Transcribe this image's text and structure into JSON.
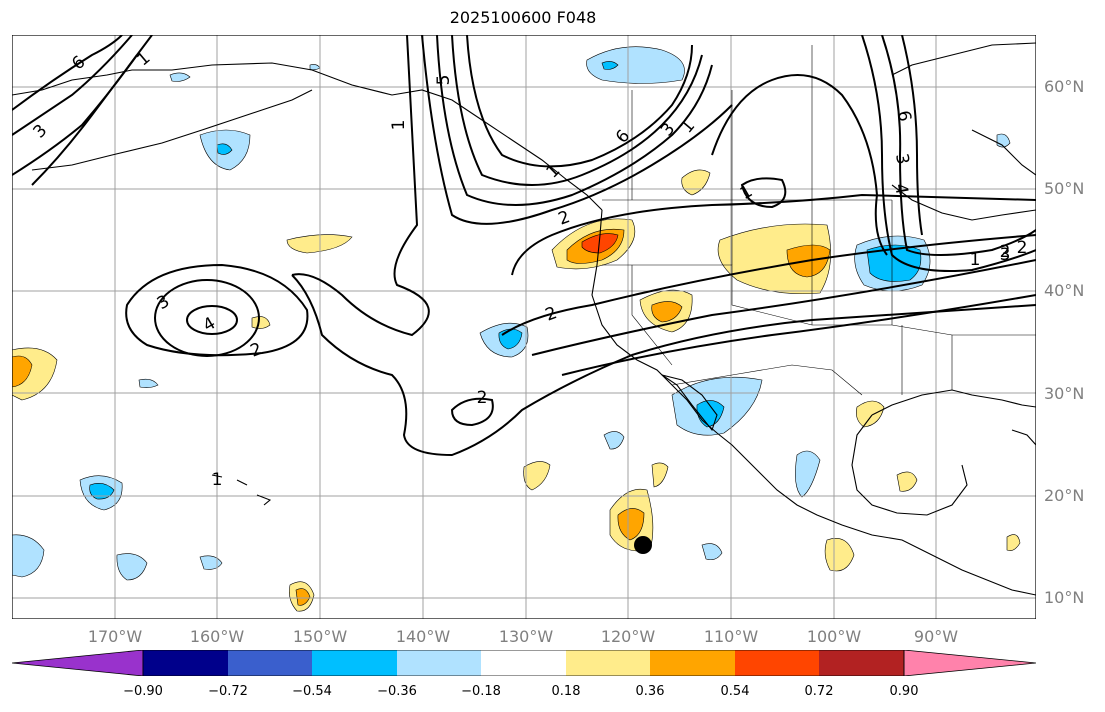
{
  "title": "2025100600 F048",
  "lat_labels": [
    "60°N",
    "50°N",
    "40°N",
    "30°N",
    "20°N",
    "10°N"
  ],
  "lon_labels": [
    "170°W",
    "160°W",
    "150°W",
    "140°W",
    "130°W",
    "120°W",
    "110°W",
    "100°W",
    "90°W"
  ],
  "colorbar": {
    "ticks": [
      "−0.90",
      "−0.72",
      "−0.54",
      "−0.36",
      "−0.18",
      "0.18",
      "0.36",
      "0.54",
      "0.72",
      "0.90"
    ],
    "colors": [
      "#9932cc",
      "#00008b",
      "#3a5fcd",
      "#00bfff",
      "#b0e2ff",
      "#ffffff",
      "#ffec8b",
      "#ffa500",
      "#ff4500",
      "#b22222",
      "#ff82ab"
    ]
  },
  "contour_labels": [
    "6",
    "1",
    "3",
    "1",
    "5",
    "1",
    "6",
    "3",
    "1",
    "1",
    "6",
    "3",
    "4",
    "1",
    "3",
    "2",
    "2",
    "3",
    "2",
    "2",
    "4",
    "2",
    "2",
    "1"
  ],
  "marker": "storm-position-dot"
}
